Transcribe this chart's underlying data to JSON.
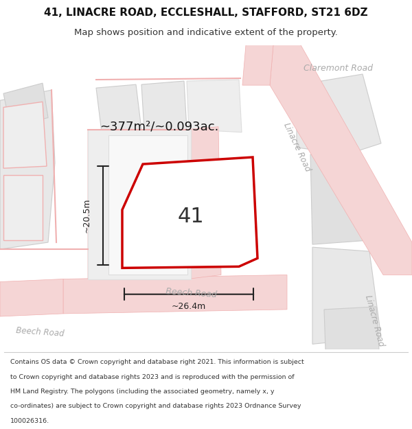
{
  "title_line1": "41, LINACRE ROAD, ECCLESHALL, STAFFORD, ST21 6DZ",
  "title_line2": "Map shows position and indicative extent of the property.",
  "footer_lines": [
    "Contains OS data © Crown copyright and database right 2021. This information is subject",
    "to Crown copyright and database rights 2023 and is reproduced with the permission of",
    "HM Land Registry. The polygons (including the associated geometry, namely x, y",
    "co-ordinates) are subject to Crown copyright and database rights 2023 Ordnance Survey",
    "100026316."
  ],
  "area_text": "~377m²/~0.093ac.",
  "label_41": "41",
  "dim_height": "~20.5m",
  "dim_width": "~26.4m",
  "background_color": "#ffffff",
  "property_edge": "#cc0000",
  "text_color": "#333333",
  "dim_color": "#222222",
  "road_label_color": "#aaaaaa",
  "gray_light": "#e8e8e8",
  "gray_mid": "#e0e0e0",
  "gray_building": "#eeeeee",
  "pink_road": "#f5d5d5",
  "pink_outline": "#f0b0b0"
}
